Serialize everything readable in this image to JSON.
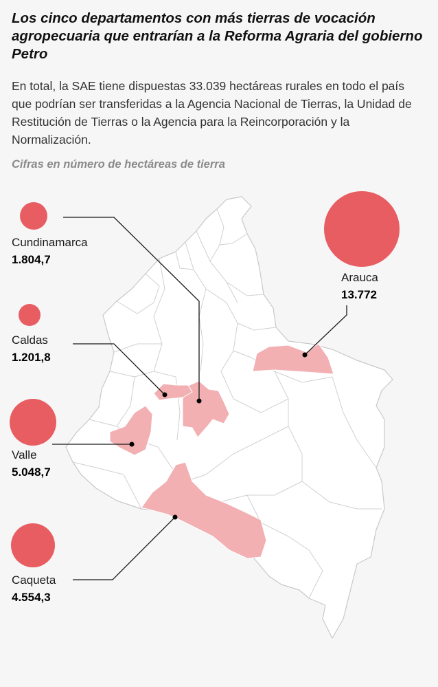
{
  "title": "Los cinco departamentos con más tierras de vocación agropecuaria que entrarían a la Reforma Agraria del gobierno Petro",
  "subtitle": "En total, la SAE tiene dispuestas 33.039 hectáreas rurales en todo el país que podrían ser transferidas a la Agencia Nacional de Tierras, la Unidad de Restitución de Tierras o la Agencia para la Reincorporación y la Normalización.",
  "note": "Cifras en número de hectáreas de tierra",
  "colors": {
    "bubble": "#e85d62",
    "highlight": "#f2b0b3",
    "land": "#ffffff",
    "border": "#c8c8c8",
    "background": "#f6f6f6"
  },
  "departments": [
    {
      "name": "Cundinamarca",
      "value": "1.804,7",
      "hectares": 1804.7
    },
    {
      "name": "Caldas",
      "value": "1.201,8",
      "hectares": 1201.8
    },
    {
      "name": "Valle",
      "value": "5.048,7",
      "hectares": 5048.7
    },
    {
      "name": "Caqueta",
      "value": "4.554,3",
      "hectares": 4554.3
    },
    {
      "name": "Arauca",
      "value": "13.772",
      "hectares": 13772
    }
  ]
}
